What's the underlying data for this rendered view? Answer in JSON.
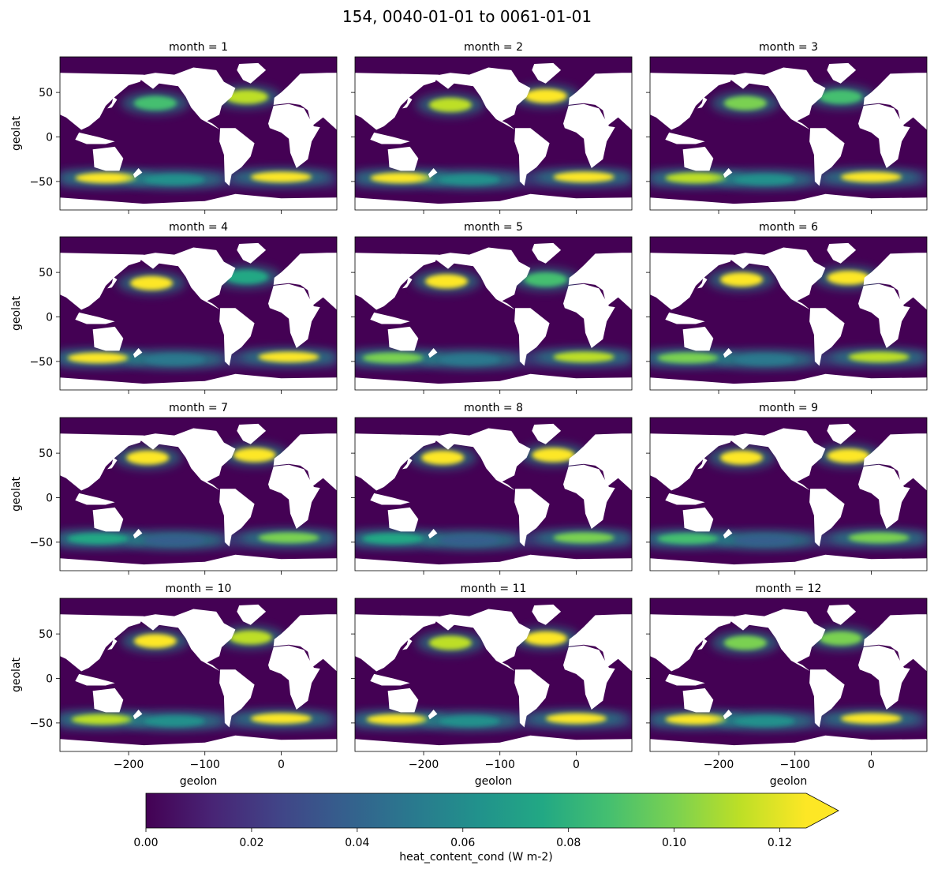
{
  "chart_data": {
    "type": "heatmap",
    "title": "154, 0040-01-01 to 0061-01-01",
    "xlabel": "geolon",
    "ylabel": "geolat",
    "xlim": [
      -290,
      73
    ],
    "ylim": [
      -82,
      90
    ],
    "xticks": [
      -200,
      -100,
      0
    ],
    "xtick_labels": [
      "−200",
      "−100",
      "0"
    ],
    "yticks": [
      50,
      0,
      -50
    ],
    "ytick_labels": [
      "50",
      "0",
      "−50"
    ],
    "colormap": "viridis",
    "colorbar": {
      "label": "heat_content_cond (W m-2)",
      "range": [
        0.0,
        0.125
      ],
      "extend": "max",
      "ticks": [
        0.0,
        0.02,
        0.04,
        0.06,
        0.08,
        0.1,
        0.12
      ],
      "tick_labels": [
        "0.00",
        "0.02",
        "0.04",
        "0.06",
        "0.08",
        "0.10",
        "0.12"
      ]
    },
    "land_color": "#ffffff",
    "panels": [
      {
        "title": "month = 1",
        "hotspots": [
          {
            "lon": -165,
            "lat": 38,
            "value": 0.09
          },
          {
            "lon": -45,
            "lat": 45,
            "value": 0.11
          },
          {
            "lon": 0,
            "lat": -45,
            "value": 0.125
          },
          {
            "lon": -230,
            "lat": -46,
            "value": 0.12
          },
          {
            "lon": -140,
            "lat": -48,
            "value": 0.06
          }
        ]
      },
      {
        "title": "month = 2",
        "hotspots": [
          {
            "lon": -165,
            "lat": 36,
            "value": 0.11
          },
          {
            "lon": -40,
            "lat": 46,
            "value": 0.12
          },
          {
            "lon": 10,
            "lat": -45,
            "value": 0.125
          },
          {
            "lon": -230,
            "lat": -46,
            "value": 0.12
          },
          {
            "lon": -140,
            "lat": -48,
            "value": 0.06
          }
        ]
      },
      {
        "title": "month = 3",
        "hotspots": [
          {
            "lon": -165,
            "lat": 38,
            "value": 0.1
          },
          {
            "lon": -40,
            "lat": 45,
            "value": 0.09
          },
          {
            "lon": 0,
            "lat": -45,
            "value": 0.125
          },
          {
            "lon": -230,
            "lat": -46,
            "value": 0.11
          },
          {
            "lon": -140,
            "lat": -48,
            "value": 0.06
          }
        ]
      },
      {
        "title": "month = 4",
        "hotspots": [
          {
            "lon": -170,
            "lat": 38,
            "value": 0.125
          },
          {
            "lon": -45,
            "lat": 45,
            "value": 0.08
          },
          {
            "lon": 10,
            "lat": -45,
            "value": 0.12
          },
          {
            "lon": -240,
            "lat": -46,
            "value": 0.12
          },
          {
            "lon": -140,
            "lat": -48,
            "value": 0.05
          }
        ]
      },
      {
        "title": "month = 5",
        "hotspots": [
          {
            "lon": -170,
            "lat": 40,
            "value": 0.125
          },
          {
            "lon": -40,
            "lat": 42,
            "value": 0.09
          },
          {
            "lon": 10,
            "lat": -45,
            "value": 0.11
          },
          {
            "lon": -240,
            "lat": -46,
            "value": 0.1
          },
          {
            "lon": -140,
            "lat": -48,
            "value": 0.05
          }
        ]
      },
      {
        "title": "month = 6",
        "hotspots": [
          {
            "lon": -170,
            "lat": 42,
            "value": 0.125
          },
          {
            "lon": -30,
            "lat": 44,
            "value": 0.125
          },
          {
            "lon": 10,
            "lat": -45,
            "value": 0.11
          },
          {
            "lon": -240,
            "lat": -46,
            "value": 0.1
          },
          {
            "lon": -140,
            "lat": -48,
            "value": 0.05
          }
        ]
      },
      {
        "title": "month = 7",
        "hotspots": [
          {
            "lon": -175,
            "lat": 45,
            "value": 0.125
          },
          {
            "lon": -35,
            "lat": 48,
            "value": 0.125
          },
          {
            "lon": 10,
            "lat": -45,
            "value": 0.1
          },
          {
            "lon": -240,
            "lat": -46,
            "value": 0.08
          },
          {
            "lon": -140,
            "lat": -48,
            "value": 0.04
          }
        ]
      },
      {
        "title": "month = 8",
        "hotspots": [
          {
            "lon": -175,
            "lat": 45,
            "value": 0.125
          },
          {
            "lon": -30,
            "lat": 48,
            "value": 0.125
          },
          {
            "lon": 10,
            "lat": -45,
            "value": 0.1
          },
          {
            "lon": -240,
            "lat": -46,
            "value": 0.08
          },
          {
            "lon": -140,
            "lat": -48,
            "value": 0.04
          }
        ]
      },
      {
        "title": "month = 9",
        "hotspots": [
          {
            "lon": -170,
            "lat": 45,
            "value": 0.125
          },
          {
            "lon": -30,
            "lat": 47,
            "value": 0.12
          },
          {
            "lon": 10,
            "lat": -45,
            "value": 0.1
          },
          {
            "lon": -240,
            "lat": -46,
            "value": 0.09
          },
          {
            "lon": -140,
            "lat": -48,
            "value": 0.04
          }
        ]
      },
      {
        "title": "month = 10",
        "hotspots": [
          {
            "lon": -165,
            "lat": 42,
            "value": 0.125
          },
          {
            "lon": -40,
            "lat": 46,
            "value": 0.11
          },
          {
            "lon": 0,
            "lat": -45,
            "value": 0.12
          },
          {
            "lon": -235,
            "lat": -46,
            "value": 0.11
          },
          {
            "lon": -140,
            "lat": -48,
            "value": 0.06
          }
        ]
      },
      {
        "title": "month = 11",
        "hotspots": [
          {
            "lon": -165,
            "lat": 40,
            "value": 0.11
          },
          {
            "lon": -40,
            "lat": 45,
            "value": 0.12
          },
          {
            "lon": 0,
            "lat": -45,
            "value": 0.125
          },
          {
            "lon": -235,
            "lat": -46,
            "value": 0.12
          },
          {
            "lon": -140,
            "lat": -48,
            "value": 0.06
          }
        ]
      },
      {
        "title": "month = 12",
        "hotspots": [
          {
            "lon": -165,
            "lat": 40,
            "value": 0.1
          },
          {
            "lon": -40,
            "lat": 45,
            "value": 0.1
          },
          {
            "lon": 0,
            "lat": -45,
            "value": 0.125
          },
          {
            "lon": -230,
            "lat": -46,
            "value": 0.12
          },
          {
            "lon": -140,
            "lat": -48,
            "value": 0.06
          }
        ]
      }
    ]
  }
}
